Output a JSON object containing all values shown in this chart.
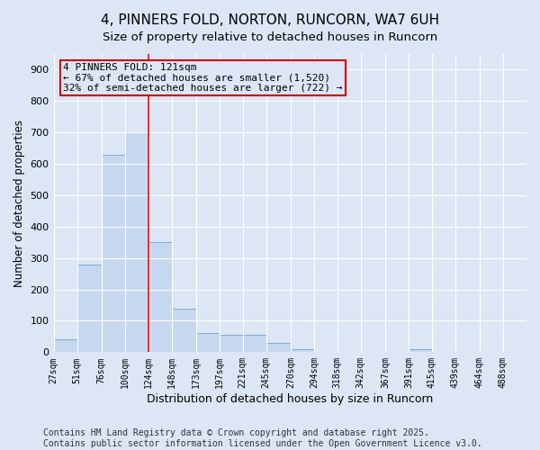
{
  "title": "4, PINNERS FOLD, NORTON, RUNCORN, WA7 6UH",
  "subtitle": "Size of property relative to detached houses in Runcorn",
  "xlabel": "Distribution of detached houses by size in Runcorn",
  "ylabel": "Number of detached properties",
  "bar_color": "#c5d8f0",
  "bar_edge_color": "#7aafd4",
  "background_color": "#dce6f5",
  "grid_color": "#ffffff",
  "annotation_box_color": "#cc0000",
  "annotation_line1": "4 PINNERS FOLD: 121sqm",
  "annotation_line2": "← 67% of detached houses are smaller (1,520)",
  "annotation_line3": "32% of semi-detached houses are larger (722) →",
  "vertical_line_x": 124,
  "bin_edges": [
    27,
    51,
    76,
    100,
    124,
    148,
    173,
    197,
    221,
    245,
    270,
    294,
    318,
    342,
    367,
    391,
    415,
    439,
    464,
    488,
    512
  ],
  "bar_heights": [
    42,
    280,
    630,
    700,
    350,
    140,
    60,
    55,
    55,
    30,
    10,
    0,
    0,
    0,
    0,
    10,
    0,
    0,
    0,
    0
  ],
  "ylim": [
    0,
    950
  ],
  "yticks": [
    0,
    100,
    200,
    300,
    400,
    500,
    600,
    700,
    800,
    900
  ],
  "footer": "Contains HM Land Registry data © Crown copyright and database right 2025.\nContains public sector information licensed under the Open Government Licence v3.0.",
  "footer_fontsize": 7,
  "title_fontsize": 11,
  "xlabel_fontsize": 9,
  "ylabel_fontsize": 8.5
}
